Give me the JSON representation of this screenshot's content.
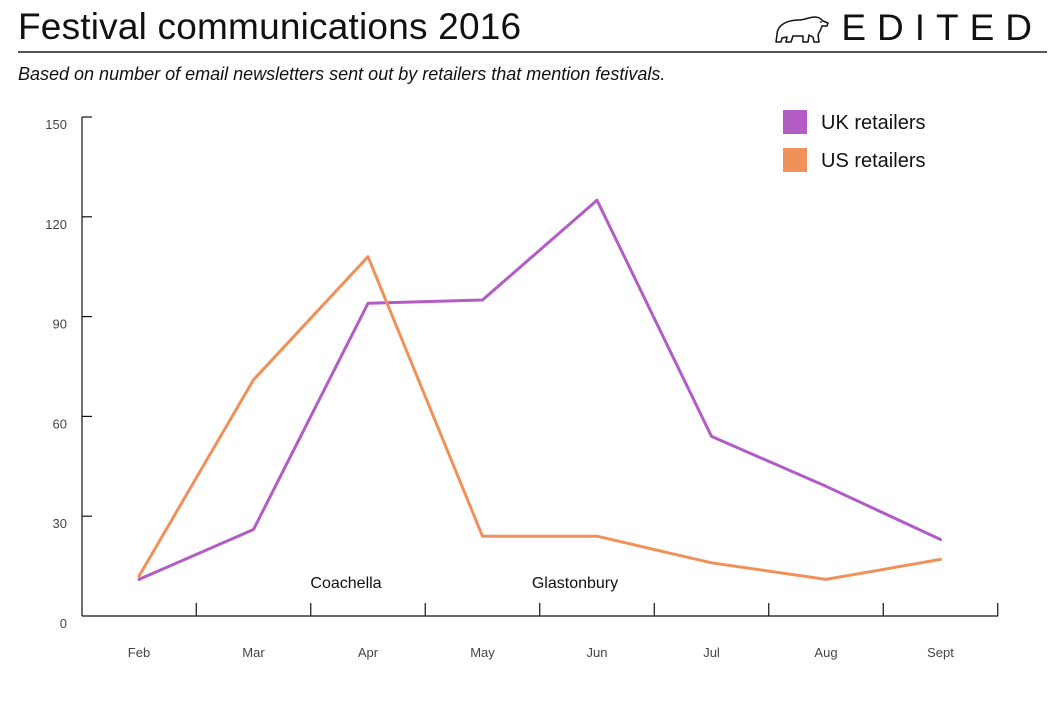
{
  "header": {
    "title": "Festival communications 2016",
    "brand": "EDITED",
    "logo_icon": "polar-bear-icon",
    "subtitle": "Based on number of email newsletters sent out by retailers that mention festivals."
  },
  "colors": {
    "uk": "#b25cc6",
    "us": "#f0905a",
    "axis": "#111111"
  },
  "chart_data": {
    "type": "line",
    "title": "Festival communications 2016",
    "subtitle": "Based on number of email newsletters sent out by retailers that mention festivals.",
    "xlabel": "",
    "ylabel": "",
    "categories": [
      "Feb",
      "Mar",
      "Apr",
      "May",
      "Jun",
      "Jul",
      "Aug",
      "Sept"
    ],
    "yticks": [
      0,
      30,
      60,
      90,
      120,
      150
    ],
    "ylim": [
      0,
      150
    ],
    "grid": false,
    "legend_position": "top-right",
    "series": [
      {
        "name": "UK retailers",
        "color": "#b25cc6",
        "values": [
          11,
          26,
          94,
          95,
          125,
          54,
          39,
          23
        ]
      },
      {
        "name": "US retailers",
        "color": "#f0905a",
        "values": [
          12,
          71,
          108,
          24,
          24,
          16,
          11,
          17
        ]
      }
    ],
    "annotations": [
      {
        "text": "Coachella",
        "category": "Apr"
      },
      {
        "text": "Glastonbury",
        "category": "Jun"
      }
    ]
  }
}
